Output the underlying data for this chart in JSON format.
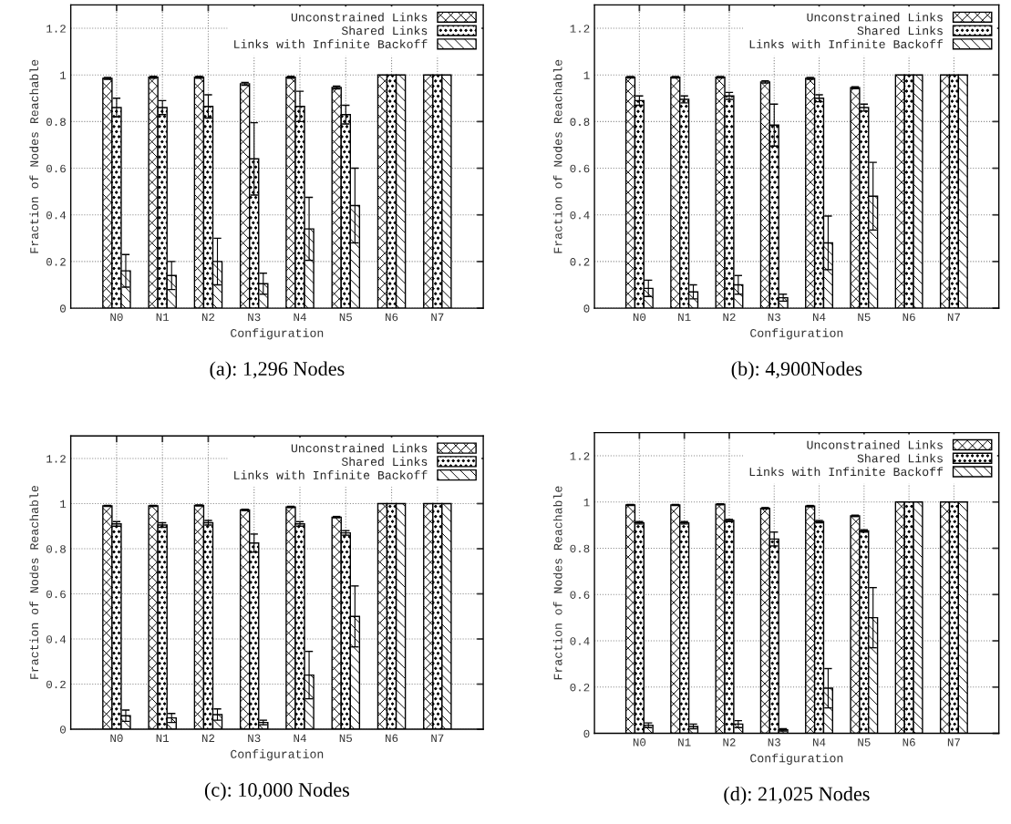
{
  "chart_data": [
    {
      "type": "bar",
      "title": "(a): 1,296 Nodes",
      "xlabel": "Configuration",
      "ylabel": "Fraction of Nodes Reachable",
      "categories": [
        "N0",
        "N1",
        "N2",
        "N3",
        "N4",
        "N5",
        "N6",
        "N7"
      ],
      "ylim": [
        0,
        1.3
      ],
      "yticks": [
        0,
        0.2,
        0.4,
        0.6,
        0.8,
        1,
        1.2
      ],
      "grid": true,
      "legend": "top right",
      "series": [
        {
          "name": "Unconstrained Links",
          "color": "#000000",
          "values": [
            0.985,
            0.99,
            0.99,
            0.962,
            0.99,
            0.946,
            1,
            1
          ],
          "errors": [
            0.004,
            0.004,
            0.004,
            0.006,
            0.004,
            0.006,
            null,
            null
          ]
        },
        {
          "name": "Shared Links",
          "color": "#000000",
          "values": [
            0.86,
            0.86,
            0.865,
            0.64,
            0.865,
            0.83,
            1,
            1
          ],
          "errors": [
            0.04,
            0.03,
            0.05,
            0.155,
            0.065,
            0.04,
            null,
            null
          ]
        },
        {
          "name": "Links with Infinite Backoff",
          "color": "#000000",
          "values": [
            0.16,
            0.14,
            0.2,
            0.105,
            0.34,
            0.44,
            1,
            1
          ],
          "errors": [
            0.07,
            0.06,
            0.1,
            0.045,
            0.135,
            0.16,
            null,
            null
          ]
        }
      ]
    },
    {
      "type": "bar",
      "title": "(b): 4,900Nodes",
      "xlabel": "Configuration",
      "ylabel": "Fraction of Nodes Reachable",
      "categories": [
        "N0",
        "N1",
        "N2",
        "N3",
        "N4",
        "N5",
        "N6",
        "N7"
      ],
      "ylim": [
        0,
        1.3
      ],
      "yticks": [
        0,
        0.2,
        0.4,
        0.6,
        0.8,
        1,
        1.2
      ],
      "grid": true,
      "legend": "top right",
      "series": [
        {
          "name": "Unconstrained Links",
          "color": "#000000",
          "values": [
            0.99,
            0.99,
            0.99,
            0.97,
            0.985,
            0.945,
            1,
            1
          ],
          "errors": [
            0.003,
            0.003,
            0.003,
            0.005,
            0.004,
            0.004,
            null,
            null
          ]
        },
        {
          "name": "Shared Links",
          "color": "#000000",
          "values": [
            0.89,
            0.895,
            0.91,
            0.785,
            0.9,
            0.86,
            1,
            1
          ],
          "errors": [
            0.02,
            0.015,
            0.015,
            0.09,
            0.015,
            0.015,
            null,
            null
          ]
        },
        {
          "name": "Links with Infinite Backoff",
          "color": "#000000",
          "values": [
            0.085,
            0.07,
            0.1,
            0.045,
            0.28,
            0.48,
            1,
            1
          ],
          "errors": [
            0.035,
            0.03,
            0.04,
            0.015,
            0.115,
            0.145,
            null,
            null
          ]
        }
      ]
    },
    {
      "type": "bar",
      "title": "(c): 10,000 Nodes",
      "xlabel": "Configuration",
      "ylabel": "Fraction of Nodes Reachable",
      "categories": [
        "N0",
        "N1",
        "N2",
        "N3",
        "N4",
        "N5",
        "N6",
        "N7"
      ],
      "ylim": [
        0,
        1.3
      ],
      "yticks": [
        0,
        0.2,
        0.4,
        0.6,
        0.8,
        1,
        1.2
      ],
      "grid": true,
      "legend": "top right",
      "series": [
        {
          "name": "Unconstrained Links",
          "color": "#000000",
          "values": [
            0.99,
            0.99,
            0.992,
            0.972,
            0.985,
            0.94,
            1,
            1
          ],
          "errors": [
            0.002,
            0.002,
            0.002,
            0.003,
            0.003,
            0.003,
            null,
            null
          ]
        },
        {
          "name": "Shared Links",
          "color": "#000000",
          "values": [
            0.91,
            0.905,
            0.915,
            0.825,
            0.91,
            0.87,
            1,
            1
          ],
          "errors": [
            0.01,
            0.01,
            0.01,
            0.04,
            0.01,
            0.01,
            null,
            null
          ]
        },
        {
          "name": "Links with Infinite Backoff",
          "color": "#000000",
          "values": [
            0.06,
            0.05,
            0.065,
            0.03,
            0.24,
            0.5,
            1,
            1
          ],
          "errors": [
            0.025,
            0.02,
            0.025,
            0.01,
            0.105,
            0.135,
            null,
            null
          ]
        }
      ]
    },
    {
      "type": "bar",
      "title": "(d): 21,025 Nodes",
      "xlabel": "Configuration",
      "ylabel": "Fraction of Nodes Reachable",
      "categories": [
        "N0",
        "N1",
        "N2",
        "N3",
        "N4",
        "N5",
        "N6",
        "N7"
      ],
      "ylim": [
        0,
        1.3
      ],
      "yticks": [
        0,
        0.2,
        0.4,
        0.6,
        0.8,
        1,
        1.2
      ],
      "grid": true,
      "legend": "top right",
      "series": [
        {
          "name": "Unconstrained Links",
          "color": "#000000",
          "values": [
            0.987,
            0.987,
            0.99,
            0.973,
            0.982,
            0.94,
            1,
            1
          ],
          "errors": [
            0.002,
            0.002,
            0.002,
            0.003,
            0.003,
            0.003,
            null,
            null
          ]
        },
        {
          "name": "Shared Links",
          "color": "#000000",
          "values": [
            0.91,
            0.91,
            0.92,
            0.84,
            0.915,
            0.875,
            1,
            1
          ],
          "errors": [
            0.005,
            0.005,
            0.005,
            0.03,
            0.005,
            0.005,
            null,
            null
          ]
        },
        {
          "name": "Links with Infinite Backoff",
          "color": "#000000",
          "values": [
            0.035,
            0.03,
            0.04,
            0.015,
            0.195,
            0.5,
            1,
            1
          ],
          "errors": [
            0.01,
            0.01,
            0.015,
            0.005,
            0.085,
            0.13,
            null,
            null
          ]
        }
      ]
    }
  ]
}
